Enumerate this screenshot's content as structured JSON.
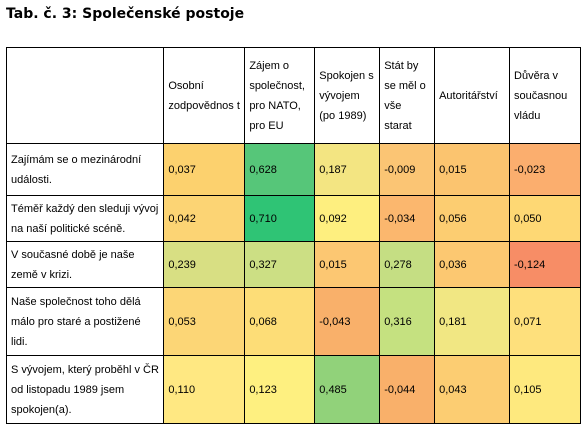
{
  "title": "Tab. č. 3: Společenské postoje",
  "columns": [
    "Osobní zodpovědnos t",
    "Zájem o společnost, pro NATO, pro EU",
    "Spokojen s vývojem (po 1989)",
    "Stát by se měl o vše starat",
    "Autoritářství",
    "Důvěra v současnou vládu"
  ],
  "rows": [
    {
      "label": "Zajímám se o mezinárodní události.",
      "values": [
        "0,037",
        "0,628",
        "0,187",
        "-0,009",
        "0,015",
        "-0,023"
      ],
      "colors": [
        "#FCD16E",
        "#56C679",
        "#F3E582",
        "#FBC574",
        "#FBC46F",
        "#FBAE6E"
      ]
    },
    {
      "label": "Téměř každý den sleduji vývoj na naší politické scéně.",
      "values": [
        "0,042",
        "0,710",
        "0,092",
        "-0,034",
        "0,056",
        "0,050"
      ],
      "colors": [
        "#FCD474",
        "#2FC475",
        "#FEEF7F",
        "#FBB76E",
        "#FCCD71",
        "#FED874"
      ]
    },
    {
      "label": "V současné době je naše země v krizi.",
      "values": [
        "0,239",
        "0,327",
        "0,015",
        "0,278",
        "0,036",
        "-0,124"
      ],
      "colors": [
        "#D8DF83",
        "#CCDF84",
        "#FCC772",
        "#C5DE83",
        "#FCC871",
        "#F78D66"
      ]
    },
    {
      "label": "Naše společnost toho dělá málo pro staré a postižené lidi.",
      "values": [
        "0,053",
        "0,068",
        "-0,043",
        "0,316",
        "0,181",
        "0,071"
      ],
      "colors": [
        "#FCD676",
        "#FDDD77",
        "#F9B06A",
        "#C5E180",
        "#F1E783",
        "#FEE07C"
      ]
    },
    {
      "label": "S vývojem, který proběhl v ČR od listopadu 1989 jsem spokojen(a).",
      "values": [
        "0,110",
        "0,123",
        "0,485",
        "-0,044",
        "0,043",
        "0,105"
      ],
      "colors": [
        "#FFE882",
        "#FEF080",
        "#91D27A",
        "#F9B06A",
        "#FCCD72",
        "#FEE97E"
      ]
    }
  ]
}
